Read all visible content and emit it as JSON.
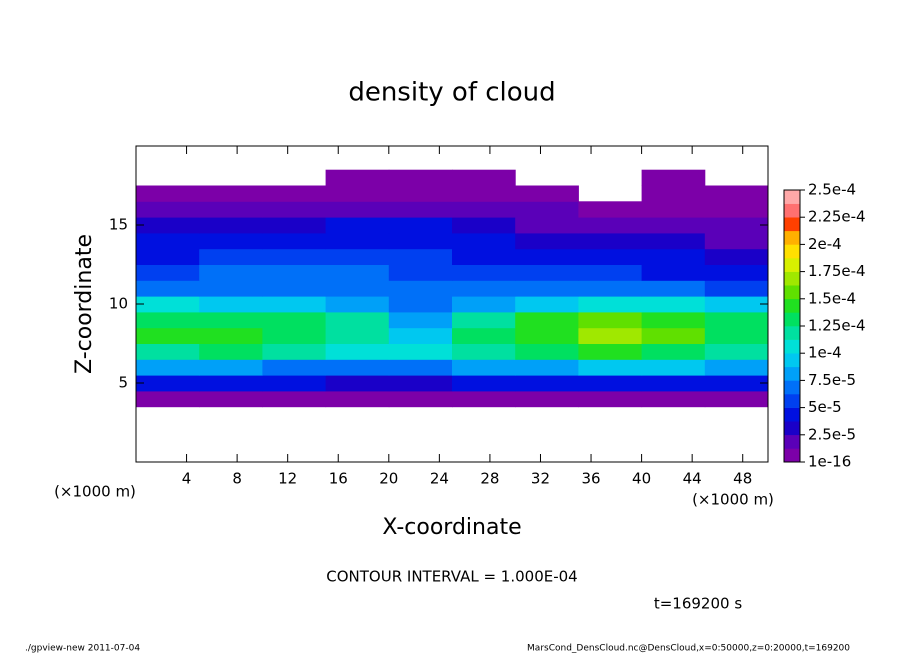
{
  "chart_data": {
    "type": "heatmap",
    "title": "density of cloud",
    "xlabel": "X-coordinate",
    "ylabel": "Z-coordinate",
    "x_unit_labels": [
      "(×1000 m)",
      "(×1000 m)"
    ],
    "annotations": [
      "CONTOUR INTERVAL = 1.000E-04",
      "t=169200 s"
    ],
    "footer_left": "./gpview-new  2011-07-04",
    "footer_right": "MarsCond_DensCloud.nc@DensCloud,x=0:50000,z=0:20000,t=169200",
    "xlim": [
      0,
      50
    ],
    "ylim": [
      0,
      20
    ],
    "xticks": [
      4,
      8,
      12,
      16,
      20,
      24,
      28,
      32,
      36,
      40,
      44,
      48
    ],
    "yticks": [
      5,
      10,
      15
    ],
    "x": [
      2.5,
      7.5,
      12.5,
      17.5,
      22.5,
      27.5,
      32.5,
      37.5,
      42.5,
      47.5
    ],
    "y": [
      4,
      5,
      6,
      7,
      8,
      9,
      10,
      11,
      12,
      13,
      14,
      15,
      16,
      17,
      18
    ],
    "values": [
      [
        1e-05,
        1e-05,
        1e-05,
        1e-05,
        1e-05,
        1e-05,
        1e-05,
        1e-05,
        1e-05,
        1e-05
      ],
      [
        4e-05,
        4e-05,
        4e-05,
        3e-05,
        3e-05,
        4e-05,
        4e-05,
        4e-05,
        4e-05,
        4e-05
      ],
      [
        8e-05,
        8e-05,
        7.5e-05,
        7e-05,
        7e-05,
        8e-05,
        8e-05,
        9e-05,
        9e-05,
        8e-05
      ],
      [
        0.000125,
        0.00013,
        0.00012,
        0.00011,
        0.000105,
        0.000115,
        0.00013,
        0.00014,
        0.000135,
        0.00012
      ],
      [
        0.00014,
        0.00015,
        0.000135,
        0.00012,
        0.0001,
        0.00013,
        0.00015,
        0.000175,
        0.00016,
        0.000135
      ],
      [
        0.00013,
        0.000135,
        0.00013,
        0.00012,
        8e-05,
        0.00012,
        0.00014,
        0.00016,
        0.00015,
        0.00013
      ],
      [
        0.000105,
        0.0001,
        9e-05,
        8e-05,
        7e-05,
        8e-05,
        0.0001,
        0.00011,
        0.000105,
        0.0001
      ],
      [
        7e-05,
        7e-05,
        7.5e-05,
        7e-05,
        6.5e-05,
        6.5e-05,
        7e-05,
        7e-05,
        6.5e-05,
        6e-05
      ],
      [
        6e-05,
        6.5e-05,
        6.5e-05,
        6.5e-05,
        6e-05,
        6e-05,
        5.5e-05,
        6e-05,
        5e-05,
        4e-05
      ],
      [
        5e-05,
        5.5e-05,
        6e-05,
        6e-05,
        6e-05,
        5e-05,
        5e-05,
        5e-05,
        4e-05,
        3e-05
      ],
      [
        4e-05,
        4.5e-05,
        5e-05,
        5e-05,
        5e-05,
        4e-05,
        3.5e-05,
        3.5e-05,
        3e-05,
        2.5e-05
      ],
      [
        3e-05,
        3e-05,
        3.5e-05,
        4e-05,
        4e-05,
        3e-05,
        2.5e-05,
        2e-05,
        2e-05,
        2e-05
      ],
      [
        2e-05,
        2e-05,
        2e-05,
        2.5e-05,
        2.5e-05,
        2e-05,
        1.5e-05,
        1e-05,
        1e-05,
        1e-05
      ],
      [
        5e-06,
        5e-06,
        5e-06,
        1e-05,
        1e-05,
        5e-06,
        5e-06,
        null,
        5e-06,
        5e-06
      ],
      [
        null,
        null,
        null,
        5e-06,
        5e-06,
        5e-06,
        null,
        null,
        5e-06,
        null
      ]
    ],
    "colorbar": {
      "ticks": [
        {
          "value": 1e-16,
          "label": "1e-16"
        },
        {
          "value": 2.5e-05,
          "label": "2.5e-5"
        },
        {
          "value": 5e-05,
          "label": "5e-5"
        },
        {
          "value": 7.5e-05,
          "label": "7.5e-5"
        },
        {
          "value": 0.0001,
          "label": "1e-4"
        },
        {
          "value": 0.000125,
          "label": "1.25e-4"
        },
        {
          "value": 0.00015,
          "label": "1.5e-4"
        },
        {
          "value": 0.000175,
          "label": "1.75e-4"
        },
        {
          "value": 0.0002,
          "label": "2e-4"
        },
        {
          "value": 0.000225,
          "label": "2.25e-4"
        },
        {
          "value": 0.00025,
          "label": "2.5e-4"
        }
      ],
      "colors": [
        "#7c00a8",
        "#5a00b8",
        "#1a00c8",
        "#0010e0",
        "#0040f0",
        "#0070f8",
        "#00a0f8",
        "#00c8f0",
        "#00e0d8",
        "#00e0a0",
        "#00e060",
        "#20e020",
        "#60e000",
        "#a0e800",
        "#d8f000",
        "#ffe000",
        "#ffb000",
        "#ff4000",
        "#ff7070",
        "#ffa8a8"
      ]
    }
  }
}
